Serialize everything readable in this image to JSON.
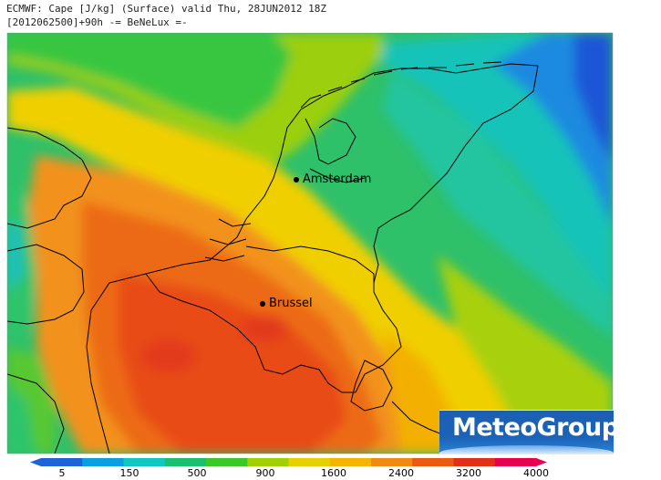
{
  "header": {
    "line1": "ECMWF: Cape [J/kg] (Surface) valid Thu, 28JUN2012 18Z",
    "line2": "[2012062500]+90h -= BeNeLux =-"
  },
  "cities": [
    {
      "name": "Amsterdam"
    },
    {
      "name": "Brussel"
    }
  ],
  "logo": {
    "text": "MeteoGroup"
  },
  "colorbar": {
    "labels": [
      "5",
      "150",
      "500",
      "900",
      "1600",
      "2400",
      "3200",
      "4000"
    ],
    "colors": [
      "#1e64d8",
      "#0aa0e0",
      "#10c8c0",
      "#18c070",
      "#3cc828",
      "#a0d000",
      "#e6d000",
      "#f4b400",
      "#f08a10",
      "#ec5a10",
      "#e03018",
      "#e80050"
    ]
  },
  "palette": {
    "deep_blue": "#1a56d6",
    "blue": "#1e8ae0",
    "cyan": "#1ec8c8",
    "green": "#1fc46a",
    "lime": "#8ecf14",
    "yellow": "#f0cf00",
    "gold": "#f3b000",
    "orange": "#f08a1a",
    "dark_orange": "#ec6418",
    "red_orange": "#e84818",
    "border": "#000000"
  }
}
